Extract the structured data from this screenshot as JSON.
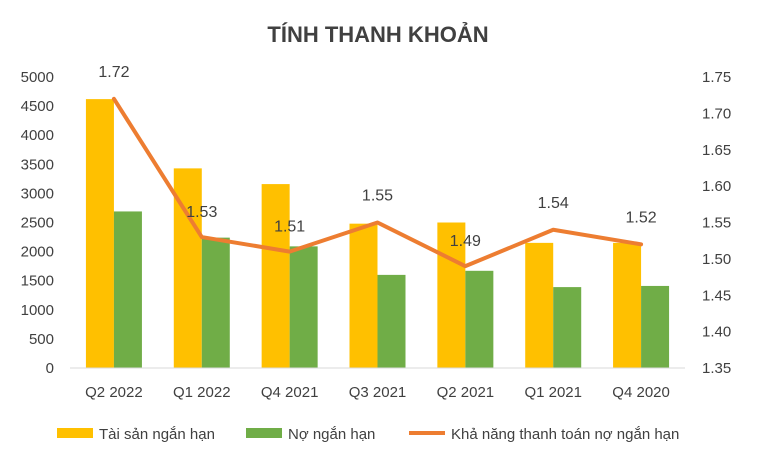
{
  "chart_data": {
    "type": "bar",
    "title": "TÍNH THANH KHOẢN",
    "categories": [
      "Q2 2022",
      "Q1 2022",
      "Q4 2021",
      "Q3 2021",
      "Q2 2021",
      "Q1 2021",
      "Q4 2020"
    ],
    "series": [
      {
        "name": "Tài sản ngắn hạn",
        "type": "bar",
        "axis": "left",
        "color": "#FFC000",
        "values": [
          4620,
          3430,
          3160,
          2480,
          2500,
          2150,
          2150
        ]
      },
      {
        "name": "Nợ ngắn hạn",
        "type": "bar",
        "axis": "left",
        "color": "#70AD47",
        "values": [
          2690,
          2240,
          2090,
          1600,
          1670,
          1390,
          1410
        ]
      },
      {
        "name": "Khả năng thanh toán nợ ngắn hạn",
        "type": "line",
        "axis": "right",
        "color": "#ED7D31",
        "values": [
          1.72,
          1.53,
          1.51,
          1.55,
          1.49,
          1.54,
          1.52
        ],
        "labels": [
          "1.72",
          "1.53",
          "1.51",
          "1.55",
          "1.49",
          "1.54",
          "1.52"
        ]
      }
    ],
    "y_left": {
      "min": 0,
      "max": 5000,
      "step": 500,
      "ticks": [
        "0",
        "500",
        "1000",
        "1500",
        "2000",
        "2500",
        "3000",
        "3500",
        "4000",
        "4500",
        "5000"
      ]
    },
    "y_right": {
      "min": 1.35,
      "max": 1.75,
      "step": 0.05,
      "ticks": [
        "1.35",
        "1.40",
        "1.45",
        "1.50",
        "1.55",
        "1.60",
        "1.65",
        "1.70",
        "1.75"
      ]
    },
    "grid": false,
    "legend_position": "bottom"
  }
}
